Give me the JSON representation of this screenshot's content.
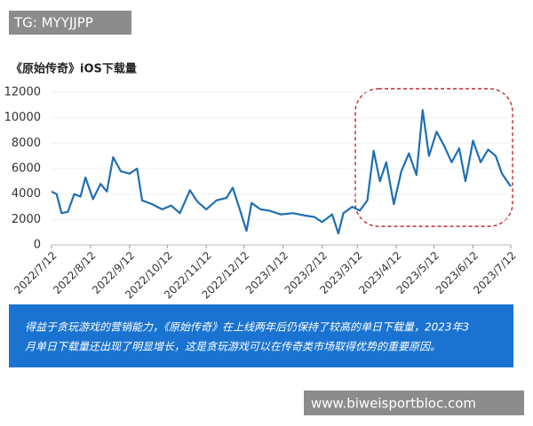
{
  "chart_data": {
    "type": "line",
    "title": "《原始传奇》iOS下载量",
    "x": [
      "2022/7/12",
      "2022/7/16",
      "2022/7/20",
      "2022/7/25",
      "2022/7/30",
      "2022/8/4",
      "2022/8/8",
      "2022/8/14",
      "2022/8/20",
      "2022/8/25",
      "2022/8/30",
      "2022/9/5",
      "2022/9/12",
      "2022/9/18",
      "2022/9/22",
      "2022/9/30",
      "2022/10/8",
      "2022/10/15",
      "2022/10/22",
      "2022/10/30",
      "2022/11/5",
      "2022/11/12",
      "2022/11/20",
      "2022/11/28",
      "2022/12/3",
      "2022/12/8",
      "2022/12/14",
      "2022/12/18",
      "2022/12/25",
      "2023/1/1",
      "2023/1/10",
      "2023/1/20",
      "2023/1/30",
      "2023/2/6",
      "2023/2/12",
      "2023/2/20",
      "2023/2/25",
      "2023/3/1",
      "2023/3/8",
      "2023/3/14",
      "2023/3/20",
      "2023/3/25",
      "2023/3/30",
      "2023/4/4",
      "2023/4/10",
      "2023/4/16",
      "2023/4/22",
      "2023/4/28",
      "2023/5/3",
      "2023/5/8",
      "2023/5/14",
      "2023/5/20",
      "2023/5/26",
      "2023/6/1",
      "2023/6/6",
      "2023/6/12",
      "2023/6/18",
      "2023/6/24",
      "2023/6/30",
      "2023/7/5",
      "2023/7/12"
    ],
    "values": [
      4200,
      4000,
      2500,
      2600,
      4000,
      3800,
      5300,
      3600,
      4800,
      4200,
      6900,
      5800,
      5600,
      6000,
      3500,
      3200,
      2800,
      3100,
      2500,
      4300,
      3400,
      2800,
      3500,
      3700,
      4500,
      3000,
      1100,
      3300,
      2800,
      2700,
      2400,
      2500,
      2300,
      2200,
      1800,
      2400,
      900,
      2500,
      3000,
      2700,
      3500,
      7400,
      5000,
      6500,
      3200,
      5800,
      7200,
      5500,
      10600,
      7000,
      8900,
      7800,
      6500,
      7600,
      5000,
      8200,
      6500,
      7500,
      7000,
      5600,
      4600
    ],
    "color": "#1f6fb2",
    "ylim": [
      0,
      12000
    ],
    "yticks": [
      0,
      2000,
      4000,
      6000,
      8000,
      10000,
      12000
    ],
    "xlim": [
      "2022/7/12",
      "2023/7/12"
    ],
    "xticks": [
      "2022/7/12",
      "2022/8/12",
      "2022/9/12",
      "2022/10/12",
      "2022/11/12",
      "2022/12/12",
      "2023/1/12",
      "2023/2/12",
      "2023/3/12",
      "2023/4/12",
      "2023/5/12",
      "2023/6/12",
      "2023/7/12"
    ],
    "grid": true,
    "annotation": [
      "得益于贪玩游戏的营销能力，《原始传奇》在上线两年后仍保持了较高的单日下载量，2023年3",
      "月单日下载量还出现了明显增长，这是贪玩游戏可以在传奇类市场取得优势的重要原因。"
    ]
  },
  "watermarks": [
    "TG: MYYJJPP",
    "www.biweisportbloc.com"
  ]
}
